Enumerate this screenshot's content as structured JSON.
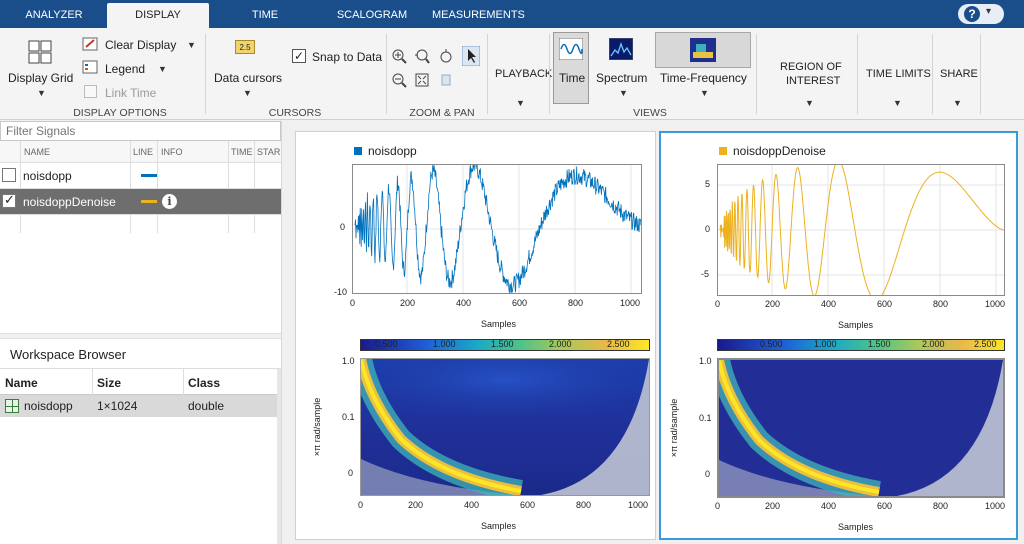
{
  "tabs": [
    "ANALYZER",
    "DISPLAY",
    "TIME",
    "SCALOGRAM",
    "MEASUREMENTS"
  ],
  "help": {
    "label": "?",
    "caret": "▾"
  },
  "toolstrip": {
    "display_options": {
      "display_grid": "Display Grid",
      "clear_display": "Clear Display",
      "legend": "Legend",
      "link_time": "Link Time",
      "section": "DISPLAY OPTIONS"
    },
    "cursors": {
      "data_cursors": "Data cursors",
      "snap_to_data": "Snap to Data",
      "cursor_badge": "2.5",
      "section": "CURSORS"
    },
    "zoom_pan": {
      "section": "ZOOM & PAN"
    },
    "playback": {
      "label": "PLAYBACK"
    },
    "views": {
      "time": "Time",
      "spectrum": "Spectrum",
      "time_frequency": "Time-Frequency",
      "section": "VIEWS"
    },
    "region": {
      "label_line1": "REGION OF",
      "label_line2": "INTEREST"
    },
    "time_limits": {
      "label": "TIME LIMITS"
    },
    "share": {
      "label": "SHARE"
    }
  },
  "signals": {
    "filter_placeholder": "Filter Signals",
    "columns": [
      "NAME",
      "LINE",
      "INFO",
      "TIME",
      "STAR"
    ],
    "rows": [
      {
        "name": "noisdopp",
        "checked": false,
        "color": "#0072bd"
      },
      {
        "name": "noisdoppDenoise",
        "checked": true,
        "color": "#edb120",
        "info": "i"
      }
    ]
  },
  "workspace": {
    "title": "Workspace Browser",
    "columns": [
      "Name",
      "Size",
      "Class"
    ],
    "rows": [
      {
        "name": "noisdopp",
        "size": "1×1024",
        "class": "double"
      }
    ]
  },
  "plots": {
    "left": {
      "legend": "noisdopp",
      "color": "#0072bd",
      "time_yticks": [
        "0",
        "-10"
      ],
      "xticks": [
        "0",
        "200",
        "400",
        "600",
        "800",
        "1000"
      ],
      "xlabel": "Samples",
      "colorbar_ticks": [
        "0.500",
        "1.000",
        "1.500",
        "2.000",
        "2.500"
      ],
      "scalo_yticks": [
        "1.0",
        "0.1",
        "0"
      ],
      "scalo_ylabel": "×π rad/sample"
    },
    "right": {
      "legend": "noisdoppDenoise",
      "color": "#edb120",
      "time_yticks": [
        "5",
        "0",
        "-5"
      ],
      "xticks": [
        "0",
        "200",
        "400",
        "600",
        "800",
        "1000"
      ],
      "xlabel": "Samples",
      "colorbar_ticks": [
        "0.500",
        "1.000",
        "1.500",
        "2.000",
        "2.500"
      ],
      "scalo_yticks": [
        "1.0",
        "0.1",
        "0"
      ],
      "scalo_ylabel": "×π rad/sample"
    }
  }
}
